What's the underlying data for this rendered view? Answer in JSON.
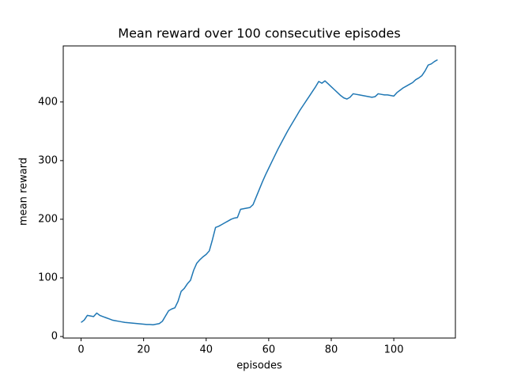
{
  "chart_data": {
    "type": "line",
    "title": "Mean reward over 100 consecutive episodes",
    "x_label": "episodes",
    "y_label": "mean reward",
    "x": [
      0,
      1,
      2,
      3,
      4,
      5,
      6,
      7,
      8,
      9,
      10,
      11,
      12,
      13,
      14,
      15,
      16,
      17,
      18,
      19,
      20,
      21,
      22,
      23,
      24,
      25,
      26,
      27,
      28,
      29,
      30,
      31,
      32,
      33,
      34,
      35,
      36,
      37,
      38,
      39,
      40,
      41,
      42,
      43,
      44,
      45,
      46,
      47,
      48,
      49,
      50,
      51,
      52,
      53,
      54,
      55,
      56,
      57,
      58,
      59,
      60,
      61,
      62,
      63,
      64,
      65,
      66,
      67,
      68,
      69,
      70,
      71,
      72,
      73,
      74,
      75,
      76,
      77,
      78,
      79,
      80,
      81,
      82,
      83,
      84,
      85,
      86,
      87,
      88,
      89,
      90,
      91,
      92,
      93,
      94,
      95,
      96,
      97,
      98,
      99,
      100,
      101,
      102,
      103,
      104,
      105,
      106,
      107,
      108,
      109,
      110,
      111,
      112,
      113,
      114
    ],
    "series": [
      {
        "name": "mean reward",
        "color": "#1f77b4",
        "values": [
          24,
          28,
          36,
          35,
          34,
          40,
          36,
          34,
          32,
          30,
          28,
          27,
          26,
          25,
          24,
          23.5,
          23,
          22.5,
          22,
          21.5,
          21,
          20.5,
          20.5,
          20,
          21,
          22,
          26,
          35,
          44,
          47,
          49,
          60,
          77,
          82,
          90,
          96,
          113,
          125,
          131,
          136,
          140,
          146,
          165,
          186,
          188,
          191,
          194,
          197,
          200,
          202,
          203,
          217,
          218,
          219,
          220,
          225,
          238,
          251,
          264,
          276,
          287,
          298,
          309,
          320,
          330,
          340,
          350,
          359,
          368,
          377,
          386,
          394,
          402,
          410,
          418,
          426,
          435,
          432,
          436,
          431,
          426,
          421,
          416,
          411,
          407,
          405,
          408,
          414,
          413,
          412,
          411,
          410,
          409,
          408,
          409,
          414,
          413,
          412,
          412,
          411,
          410,
          416,
          420,
          424,
          427,
          430,
          433,
          438,
          441,
          445,
          453,
          463,
          465,
          469,
          472
        ]
      }
    ],
    "xlim": [
      -5.7,
      119.7
    ],
    "ylim": [
      -2.6,
      495.6
    ],
    "xticks": [
      0,
      20,
      40,
      60,
      80,
      100
    ],
    "yticks": [
      0,
      100,
      200,
      300,
      400
    ]
  }
}
